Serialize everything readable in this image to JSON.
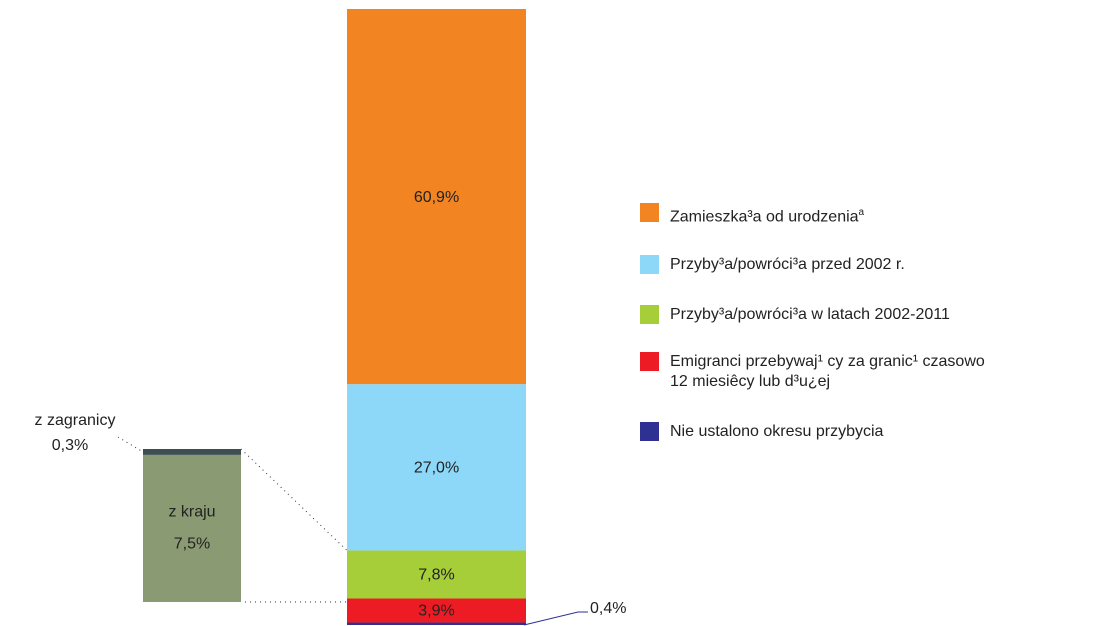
{
  "chart_data": {
    "type": "stacked_bar",
    "series": [
      {
        "name": "Zamieszka³a od urodzenia",
        "footnote_mark": "a",
        "color": "#f28522",
        "values": [
          60.9
        ],
        "value_labels": [
          "60,9%"
        ]
      },
      {
        "name": "Przyby³a/powróci³a  przed 2002 r.",
        "color": "#8dd8f8",
        "values": [
          27.0
        ],
        "value_labels": [
          "27,0%"
        ]
      },
      {
        "name": "Przyby³a/powróci³a  w latach 2002-2011",
        "color": "#a6ce39",
        "values": [
          7.8
        ],
        "value_labels": [
          "7,8%"
        ]
      },
      {
        "name": "Emigranci przebywaj¹ cy za granic¹  czasowo\n12 miesiêcy lub d³u¿ej",
        "color": "#ed1c24",
        "values": [
          3.9
        ],
        "value_labels": [
          "3,9%"
        ]
      },
      {
        "name": "Nie ustalono okresu przybycia",
        "color": "#2e3192",
        "values": [
          0.4
        ],
        "value_labels": [
          "0,4%"
        ]
      }
    ],
    "breakdown": {
      "series": [
        {
          "name": "z kraju",
          "color": "#8a9a72",
          "values": [
            7.5
          ],
          "value_labels": [
            "7,5%"
          ]
        },
        {
          "name": "z zagranicy",
          "color": "#3e4f52",
          "values": [
            0.3
          ],
          "value_labels": [
            "0,3%"
          ]
        }
      ]
    }
  }
}
